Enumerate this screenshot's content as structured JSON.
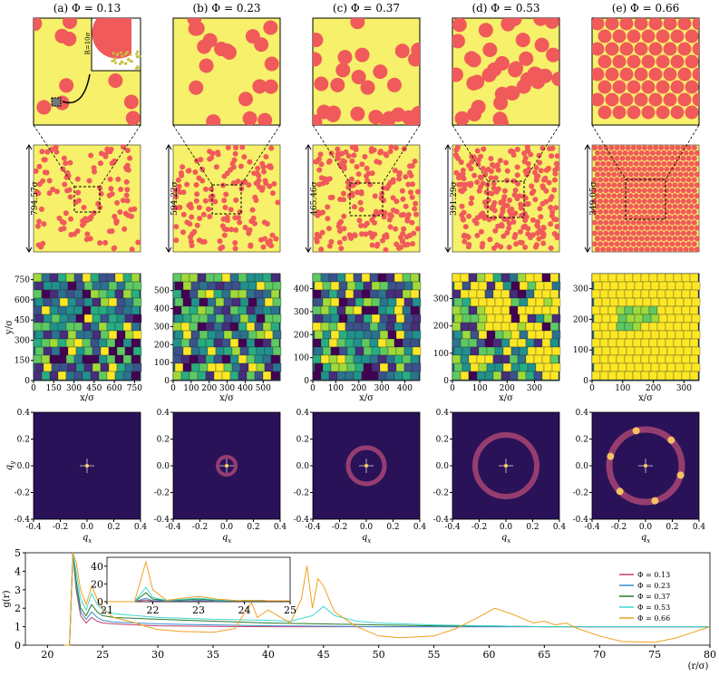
{
  "palette": {
    "yellow": "#f6f06a",
    "red": "#f05a5a",
    "fft_dark": "#1a0c3a",
    "fft_mid": "#3b1a6b",
    "fft_ring": "#c4507a",
    "fft_hot": "#ffd060",
    "voronoi_colors": [
      "#440154",
      "#3b528b",
      "#21918c",
      "#5ec962",
      "#fde725",
      "#2c728e",
      "#27ad81",
      "#9fda3a",
      "#472d7b"
    ]
  },
  "panels": [
    {
      "label": "(a) Φ = 0.13",
      "box": "794.57σ",
      "phi": 0.13,
      "vor_ticks": [
        "0",
        "150",
        "300",
        "450",
        "600",
        "750"
      ],
      "vor_yticks": [
        "0",
        "150",
        "300",
        "450",
        "600",
        "750"
      ],
      "vor_max": 794.57
    },
    {
      "label": "(b) Φ = 0.23",
      "box": "594.22σ",
      "phi": 0.23,
      "vor_ticks": [
        "0",
        "100",
        "200",
        "300",
        "400",
        "500"
      ],
      "vor_yticks": [
        "0",
        "100",
        "200",
        "300",
        "400",
        "500"
      ],
      "vor_max": 594.22
    },
    {
      "label": "(c) Φ = 0.37",
      "box": "465.46σ",
      "phi": 0.37,
      "vor_ticks": [
        "0",
        "100",
        "200",
        "300",
        "400"
      ],
      "vor_yticks": [
        "0",
        "100",
        "200",
        "300",
        "400"
      ],
      "vor_max": 465.46
    },
    {
      "label": "(d) Φ = 0.53",
      "box": "391.29σ",
      "phi": 0.53,
      "vor_ticks": [
        "0",
        "100",
        "200",
        "300"
      ],
      "vor_yticks": [
        "0",
        "100",
        "200",
        "300"
      ],
      "vor_max": 391.29
    },
    {
      "label": "(e) Φ = 0.66",
      "box": "349.05σ",
      "phi": 0.66,
      "vor_ticks": [
        "0",
        "100",
        "200",
        "300"
      ],
      "vor_yticks": [
        "0",
        "100",
        "200",
        "300"
      ],
      "vor_max": 349.05
    }
  ],
  "inset_label": "R=10σ",
  "voronoi": {
    "xlabel": "x/σ",
    "ylabel": "y/σ"
  },
  "fft": {
    "xlabel": "q",
    "xsub": "x",
    "ylabel": "q",
    "ysub": "y",
    "ticks": [
      "-0.4",
      "-0.2",
      "0.0",
      "0.2",
      "0.4"
    ]
  },
  "chart_data": {
    "type": "line",
    "title": "",
    "xlabel": "(r/σ)",
    "ylabel": "g(r)",
    "xlim": [
      18,
      80
    ],
    "ylim": [
      0,
      5
    ],
    "xticks": [
      20,
      25,
      30,
      35,
      40,
      45,
      50,
      55,
      60,
      65,
      70,
      75,
      80
    ],
    "yticks": [
      0,
      1,
      2,
      3,
      4,
      5
    ],
    "legend_position": "right",
    "series": [
      {
        "name": "Φ = 0.13",
        "color": "#c0406a",
        "x": [
          21.5,
          22.0,
          22.3,
          22.6,
          23.0,
          23.5,
          24.0,
          24.5,
          25.0,
          26,
          28,
          30,
          35,
          40,
          45,
          50,
          55,
          60,
          65,
          70,
          75,
          80
        ],
        "y": [
          0,
          0,
          5,
          3.0,
          1.6,
          1.2,
          1.5,
          1.3,
          1.2,
          1.15,
          1.1,
          1.05,
          1.02,
          1.0,
          1.0,
          1.0,
          1.0,
          1.0,
          1.0,
          1.0,
          1.0,
          1.0
        ]
      },
      {
        "name": "Φ = 0.23",
        "color": "#3a8fd0",
        "x": [
          21.5,
          22.0,
          22.3,
          22.6,
          23.0,
          23.5,
          24.0,
          24.5,
          25.0,
          26,
          28,
          30,
          35,
          40,
          45,
          50,
          55,
          60,
          65,
          70,
          75,
          80
        ],
        "y": [
          0,
          0,
          5,
          3.2,
          1.8,
          1.4,
          1.8,
          1.5,
          1.35,
          1.25,
          1.2,
          1.15,
          1.1,
          1.05,
          1.03,
          1.0,
          1.0,
          1.0,
          1.0,
          1.0,
          1.0,
          1.0
        ]
      },
      {
        "name": "Φ = 0.37",
        "color": "#2a7a2a",
        "x": [
          21.5,
          22.0,
          22.3,
          22.6,
          23.0,
          23.5,
          24.0,
          24.5,
          25.0,
          26,
          28,
          30,
          35,
          40,
          45,
          50,
          55,
          60,
          65,
          70,
          75,
          80
        ],
        "y": [
          0,
          0,
          5,
          3.5,
          2.0,
          1.6,
          2.2,
          1.8,
          1.6,
          1.5,
          1.45,
          1.4,
          1.3,
          1.2,
          1.15,
          1.1,
          1.05,
          1.05,
          1.0,
          1.0,
          1.0,
          1.0
        ]
      },
      {
        "name": "Φ = 0.53",
        "color": "#40d8d0",
        "x": [
          21.5,
          22.0,
          22.3,
          22.6,
          23.0,
          23.5,
          24.0,
          24.5,
          25.0,
          26,
          28,
          30,
          35,
          40,
          42,
          44,
          45,
          46,
          48,
          50,
          55,
          60,
          65,
          70,
          75,
          80
        ],
        "y": [
          0,
          0,
          5,
          4.0,
          2.5,
          1.9,
          2.8,
          2.2,
          1.9,
          1.7,
          1.6,
          1.5,
          1.4,
          1.35,
          1.3,
          1.6,
          2.1,
          1.6,
          1.3,
          1.2,
          1.1,
          1.05,
          1.0,
          1.0,
          1.0,
          1.0
        ]
      },
      {
        "name": "Φ = 0.66",
        "color": "#f0a020",
        "x": [
          21.5,
          22.0,
          22.3,
          22.6,
          23.0,
          23.5,
          24.0,
          24.5,
          25.0,
          26,
          28,
          29,
          30,
          32,
          35,
          37,
          38,
          38.5,
          39,
          40,
          42,
          43,
          43.5,
          44,
          44.5,
          45,
          46,
          48,
          50,
          52,
          55,
          57,
          59,
          60.5,
          62,
          64,
          65,
          66,
          67,
          68,
          70,
          72,
          75,
          77,
          80
        ],
        "y": [
          0,
          0,
          5,
          4.5,
          3.0,
          2.2,
          3.2,
          2.5,
          2.0,
          1.5,
          1.2,
          1.0,
          0.85,
          0.75,
          0.7,
          0.9,
          1.9,
          2.3,
          1.5,
          1.9,
          1.2,
          2.5,
          4.3,
          2.0,
          3.6,
          3.2,
          1.8,
          1.0,
          0.5,
          0.4,
          0.5,
          0.9,
          1.5,
          2.0,
          1.7,
          1.2,
          1.3,
          1.1,
          1.2,
          0.9,
          0.5,
          0.2,
          0.15,
          0.4,
          1.0
        ]
      }
    ],
    "inset": {
      "xlim": [
        21,
        25
      ],
      "ylim": [
        0,
        50
      ],
      "xticks": [
        21,
        22,
        23,
        24,
        25
      ],
      "yticks": [
        0,
        20,
        40
      ],
      "peaks": [
        {
          "name": "Φ = 0.13",
          "p1": 2,
          "p2": 1
        },
        {
          "name": "Φ = 0.23",
          "p1": 4,
          "p2": 1.5
        },
        {
          "name": "Φ = 0.37",
          "p1": 10,
          "p2": 3
        },
        {
          "name": "Φ = 0.53",
          "p1": 16,
          "p2": 4
        },
        {
          "name": "Φ = 0.66",
          "p1": 45,
          "p2": 6
        }
      ]
    }
  }
}
